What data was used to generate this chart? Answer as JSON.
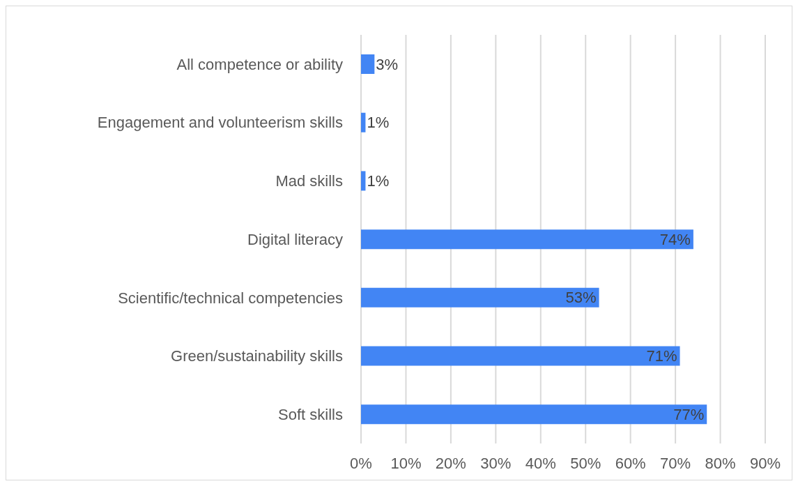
{
  "chart_data": {
    "type": "bar",
    "orientation": "horizontal",
    "categories": [
      "All competence or ability",
      "Engagement and volunteerism skills",
      "Mad skills",
      "Digital literacy",
      "Scientific/technical competencies",
      "Green/sustainability skills",
      "Soft skills"
    ],
    "values": [
      3,
      1,
      1,
      74,
      53,
      71,
      77
    ],
    "value_labels": [
      "3%",
      "1%",
      "1%",
      "74%",
      "53%",
      "71%",
      "77%"
    ],
    "color": "#4285f4",
    "xlim": [
      0,
      90
    ],
    "xticks": [
      {
        "value": 0,
        "label": "0%"
      },
      {
        "value": 10,
        "label": "10%"
      },
      {
        "value": 20,
        "label": "20%"
      },
      {
        "value": 30,
        "label": "30%"
      },
      {
        "value": 40,
        "label": "40%"
      },
      {
        "value": 50,
        "label": "50%"
      },
      {
        "value": 60,
        "label": "60%"
      },
      {
        "value": 70,
        "label": "70%"
      },
      {
        "value": 80,
        "label": "80%"
      },
      {
        "value": 90,
        "label": "90%"
      }
    ],
    "grid": "x"
  }
}
